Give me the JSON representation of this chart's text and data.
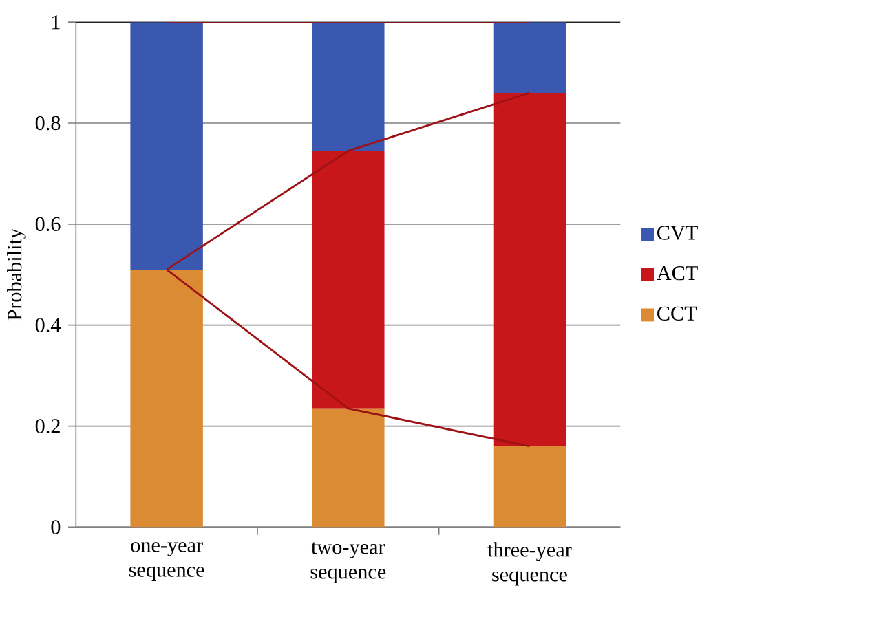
{
  "chart_data": {
    "type": "bar",
    "stacked": true,
    "ylabel": "Probability",
    "categories": [
      "one-year sequence",
      "two-year sequence",
      "three-year sequence"
    ],
    "series": [
      {
        "name": "CCT",
        "color": "#db8b34",
        "values": [
          0.51,
          0.235,
          0.16
        ]
      },
      {
        "name": "ACT",
        "color": "#c8171a",
        "values": [
          0,
          0.51,
          0.7
        ]
      },
      {
        "name": "CVT",
        "color": "#3a58b0",
        "values": [
          0.49,
          0.255,
          0.14
        ]
      },
      {
        "type": "line",
        "color": "#9e1216",
        "values": [
          0.51,
          0.235,
          0.16
        ]
      },
      {
        "type": "line",
        "color": "#9e1216",
        "values": [
          0.51,
          0.745,
          0.86
        ]
      },
      {
        "type": "line",
        "color": "#9e1216",
        "values": [
          1,
          1,
          1
        ]
      }
    ],
    "ylim": [
      0,
      1
    ],
    "yticks": [
      0,
      0.2,
      0.4,
      0.6,
      0.8,
      1
    ],
    "grid": "y",
    "legend": "right",
    "marker": "none"
  }
}
